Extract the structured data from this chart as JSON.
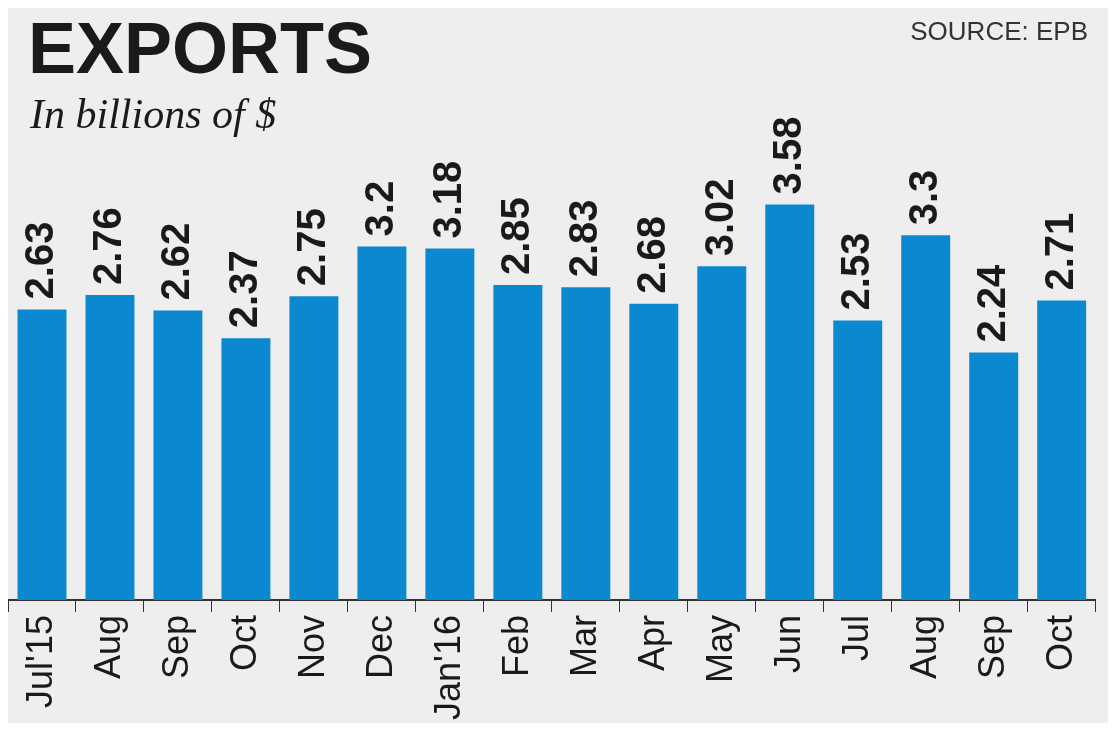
{
  "chart_data": {
    "type": "bar",
    "title": "EXPORTS",
    "subtitle": "In billions of $",
    "annotations": [
      "SOURCE: EPB"
    ],
    "categories": [
      "Jul'15",
      "Aug",
      "Sep",
      "Oct",
      "Nov",
      "Dec",
      "Jan'16",
      "Feb",
      "Mar",
      "Apr",
      "May",
      "Jun",
      "Jul",
      "Aug",
      "Sep",
      "Oct"
    ],
    "values": [
      2.63,
      2.76,
      2.62,
      2.37,
      2.75,
      3.2,
      3.18,
      2.85,
      2.83,
      2.68,
      3.02,
      3.58,
      2.53,
      3.3,
      2.24,
      2.71
    ],
    "color": "#0a88d0",
    "tick_labels": "x",
    "data_labels": true,
    "grid": false,
    "legend": false
  }
}
